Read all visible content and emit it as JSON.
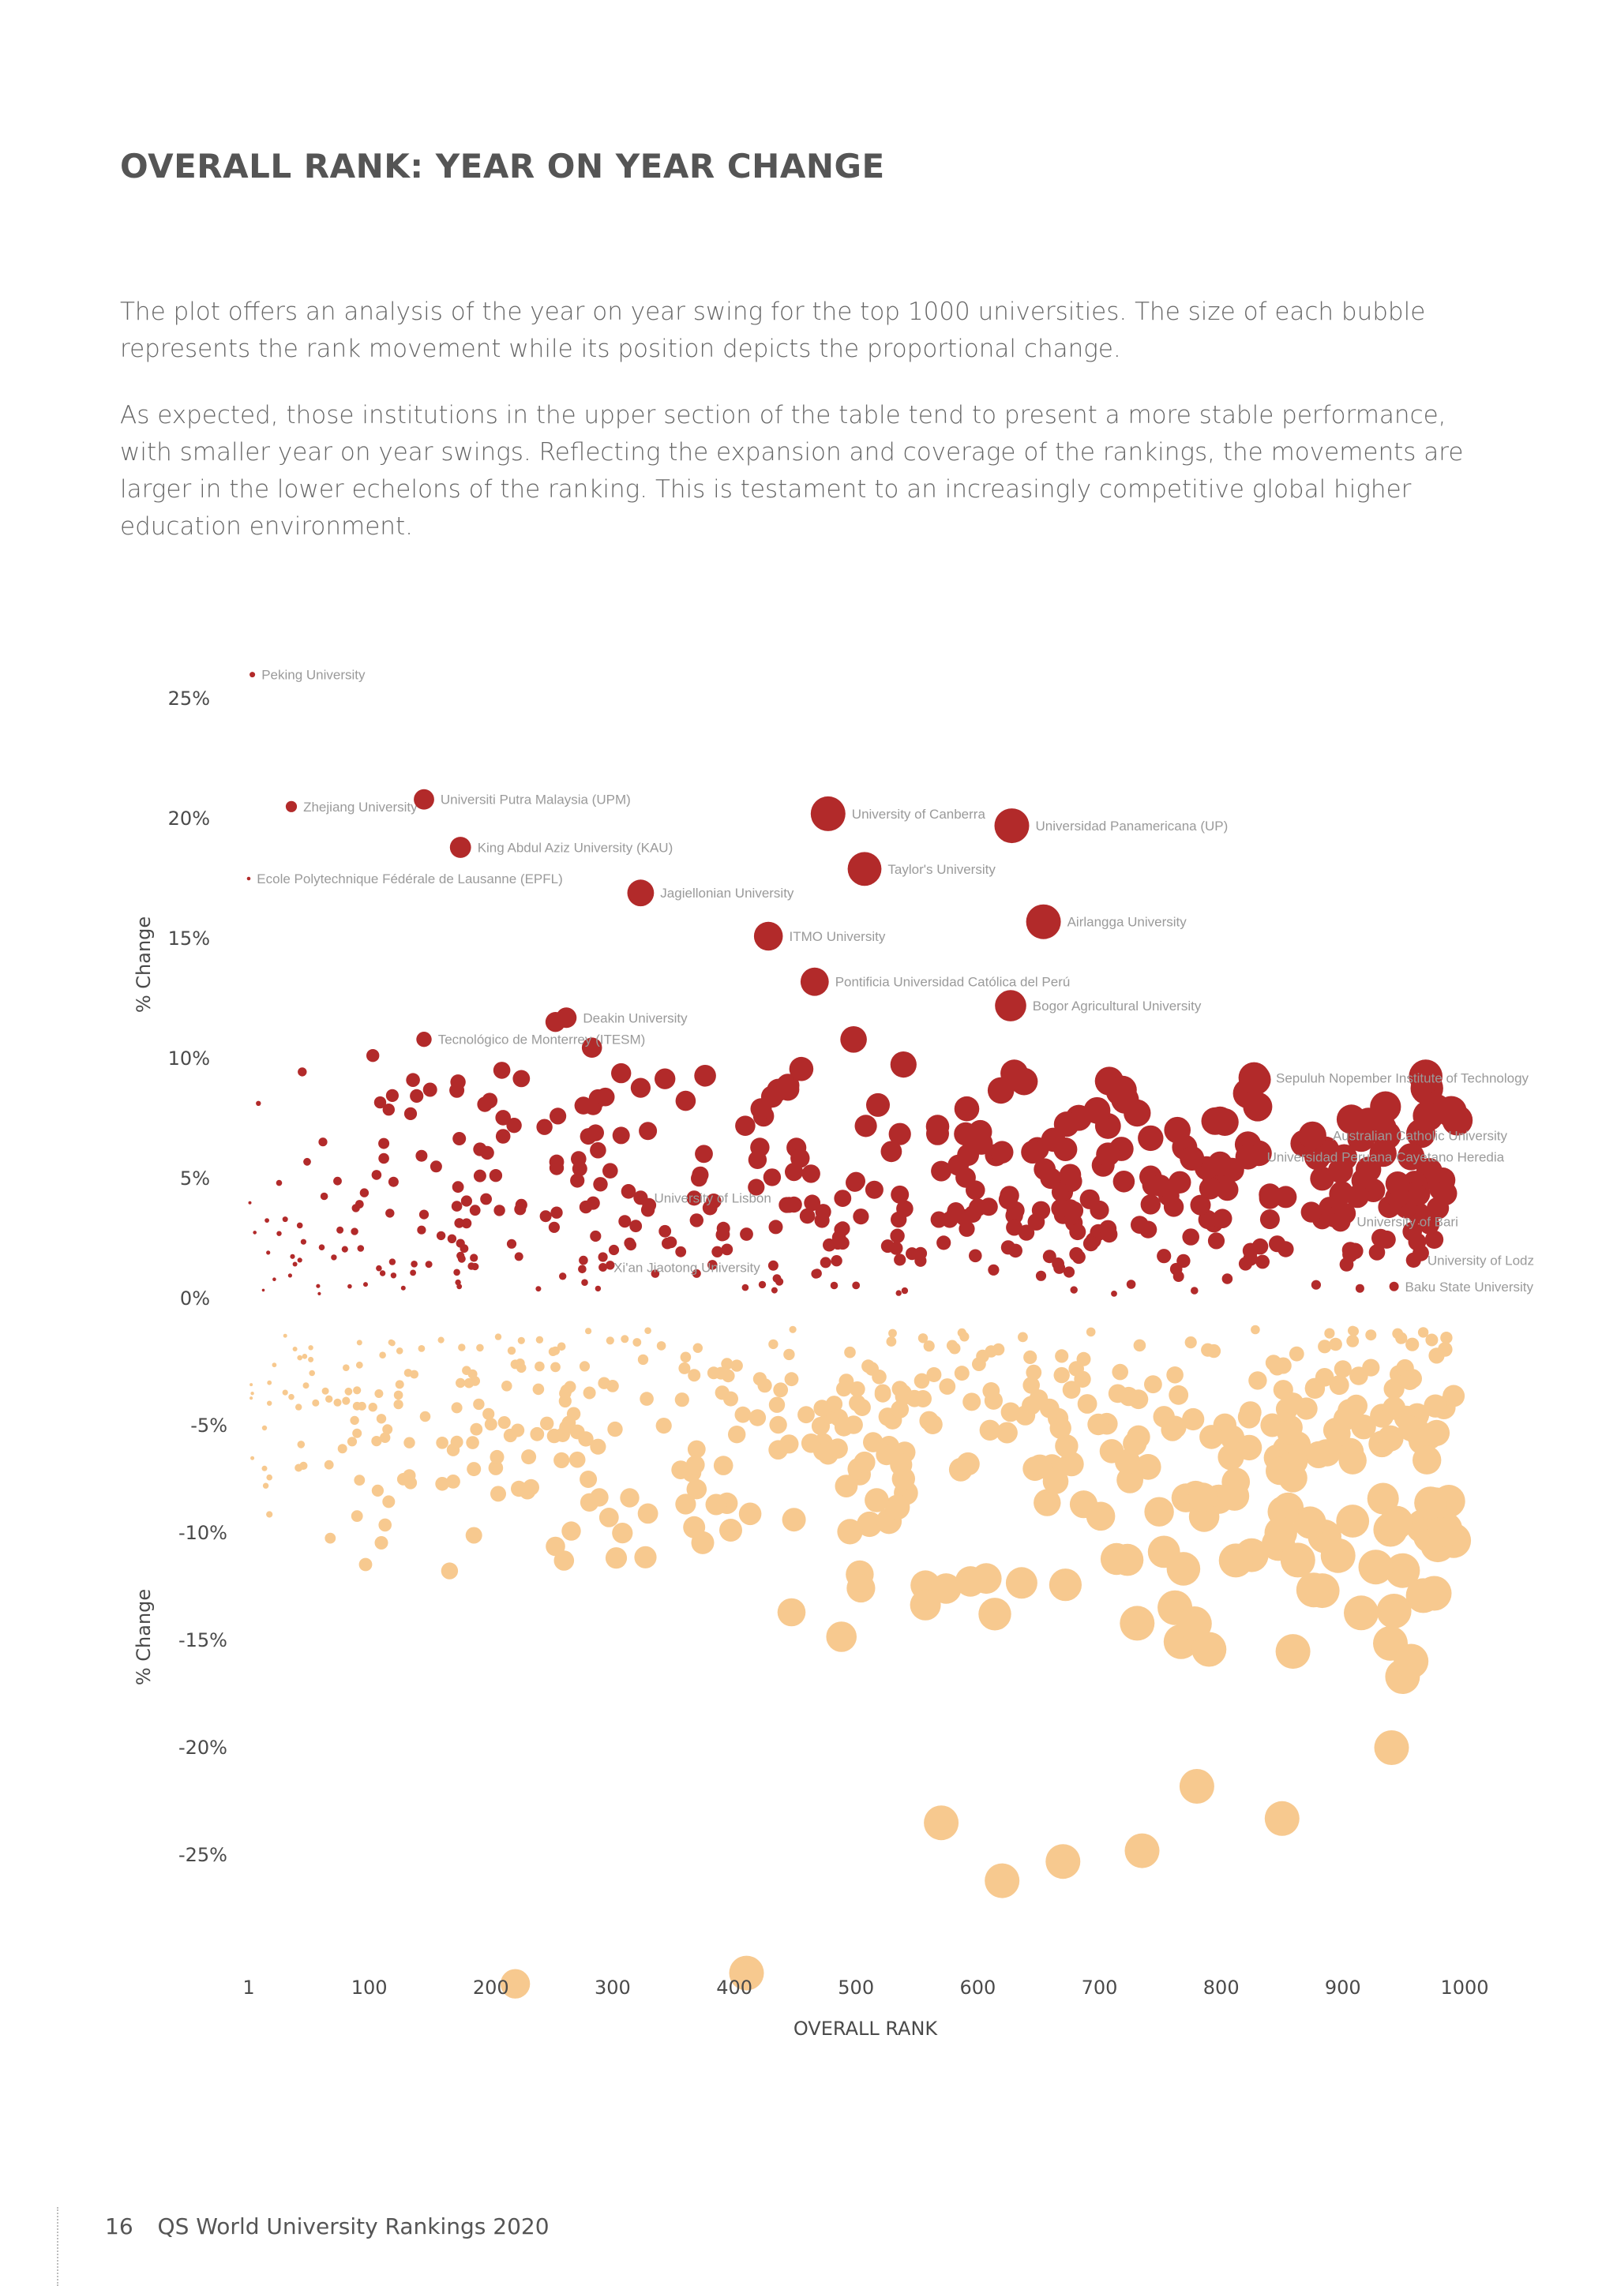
{
  "page": {
    "title": "OVERALL RANK: YEAR ON YEAR CHANGE",
    "paragraphs": [
      "The plot offers an analysis of the year on year swing for the top 1000 universities. The size of each bubble represents the rank movement while its position depicts the proportional change.",
      "As expected, those institutions in the upper section of the table tend to present a more stable performance, with smaller year on year swings. Reflecting the expansion and coverage of the rankings, the movements are larger in the lower echelons of the ranking. This is testament to an increasingly competitive global higher education environment."
    ],
    "footer": {
      "page_number": "16",
      "publication": "QS World University Rankings 2020"
    }
  },
  "colors": {
    "positive": "#b22a2a",
    "negative": "#f7c98f",
    "text": "#4a4a4a",
    "label": "#9a9a9a"
  },
  "chart_data": {
    "type": "scatter",
    "xlabel": "OVERALL RANK",
    "ylabel_top": "% Change",
    "ylabel_bottom": "% Change",
    "x_ticks": [
      1,
      100,
      200,
      300,
      400,
      500,
      600,
      700,
      800,
      900,
      1000
    ],
    "y_ticks_positive": [
      "25%",
      "20%",
      "15%",
      "10%",
      "5%",
      "0%"
    ],
    "y_ticks_negative": [
      "-5%",
      "-10%",
      "-15%",
      "-20%",
      "-25%"
    ],
    "xlim": [
      1,
      1000
    ],
    "grid": false,
    "bubble_size": "rank movement",
    "labeled_points": [
      {
        "name": "Peking University",
        "x": 4,
        "y": 26
      },
      {
        "name": "Zhejiang University",
        "x": 36,
        "y": 20.5
      },
      {
        "name": "Ecole Polytechnique Fédérale de Lausanne (EPFL)",
        "x": 1,
        "y": 17.5
      },
      {
        "name": "Universiti Putra Malaysia (UPM)",
        "x": 145,
        "y": 20.8
      },
      {
        "name": "King Abdul Aziz University (KAU)",
        "x": 175,
        "y": 18.8
      },
      {
        "name": "Tecnológico de Monterrey (ITESM)",
        "x": 145,
        "y": 10.8
      },
      {
        "name": "Deakin University",
        "x": 262,
        "y": 11.7
      },
      {
        "name": "Jagiellonian University",
        "x": 323,
        "y": 16.9
      },
      {
        "name": "University of Lisbon",
        "x": 323,
        "y": 4.2
      },
      {
        "name": "Xi'an Jiaotong University",
        "x": 292,
        "y": 1.3
      },
      {
        "name": "ITMO University",
        "x": 428,
        "y": 15.1
      },
      {
        "name": "University of Canberra",
        "x": 477,
        "y": 20.2
      },
      {
        "name": "Taylor's University",
        "x": 507,
        "y": 17.9
      },
      {
        "name": "Pontificia Universidad Católica del Perú",
        "x": 466,
        "y": 13.2
      },
      {
        "name": "Universidad Panamericana (UP)",
        "x": 628,
        "y": 19.7
      },
      {
        "name": "Airlangga University",
        "x": 654,
        "y": 15.7
      },
      {
        "name": "Bogor Agricultural University",
        "x": 627,
        "y": 12.2
      },
      {
        "name": "Sepuluh Nopember Institute of Technology",
        "x": 827,
        "y": 9.2
      },
      {
        "name": "Australian Catholic University",
        "x": 875,
        "y": 6.8
      },
      {
        "name": "Universidad Peruana Cayetano Heredia",
        "x": 822,
        "y": 5.9
      },
      {
        "name": "University of Bari",
        "x": 898,
        "y": 3.2
      },
      {
        "name": "University of Lodz",
        "x": 958,
        "y": 1.6
      },
      {
        "name": "Baku State University",
        "x": 942,
        "y": 0.5
      }
    ],
    "note": "Hundreds of additional unlabeled bubbles: red above 0% (positive change) and light orange below 0% (negative change); bubble size grows with rank and swing."
  }
}
